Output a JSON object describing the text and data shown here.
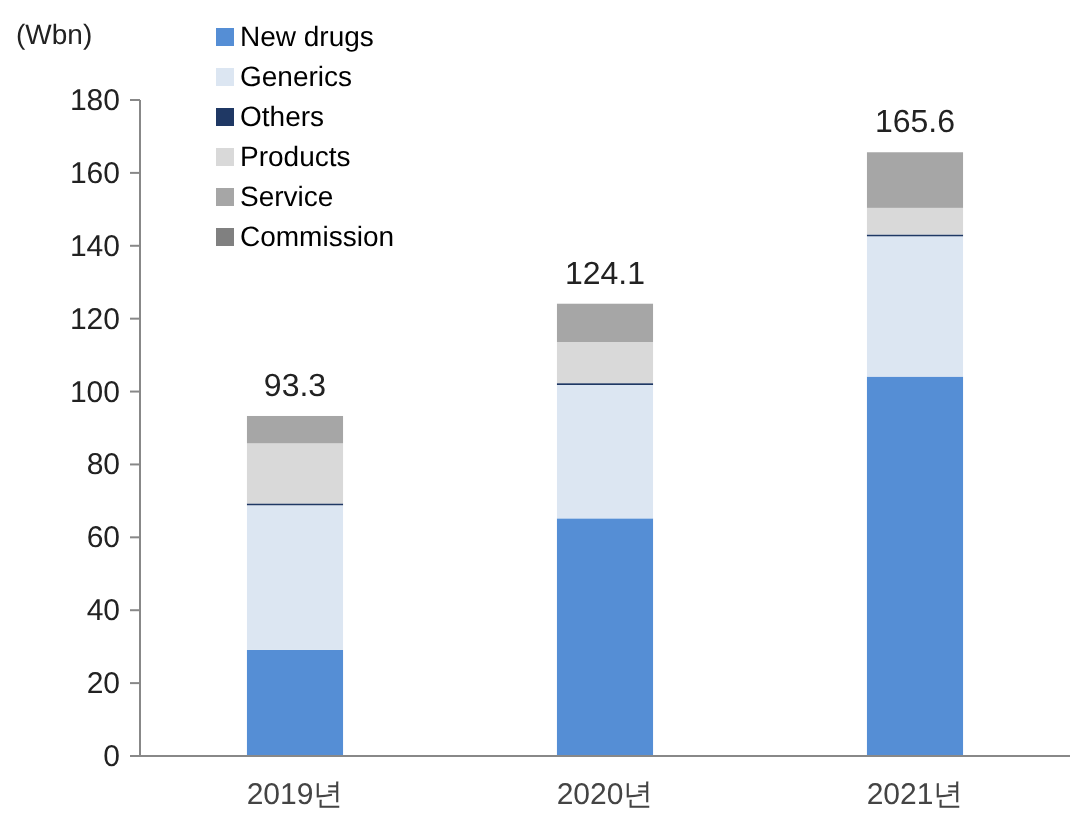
{
  "chart_data": {
    "type": "bar",
    "stacked": true,
    "ylabel": "(Wbn)",
    "categories": [
      "2019년",
      "2020년",
      "2021년"
    ],
    "series": [
      {
        "name": "New drugs",
        "color": "#558ed5",
        "values": [
          29.1,
          65.2,
          104.1
        ]
      },
      {
        "name": "Generics",
        "color": "#dce6f2",
        "values": [
          39.7,
          36.6,
          38.5
        ]
      },
      {
        "name": "Others",
        "color": "#1f3864",
        "values": [
          0.5,
          0.5,
          0.5
        ]
      },
      {
        "name": "Products",
        "color": "#d9d9d9",
        "values": [
          16.5,
          11.3,
          7.3
        ]
      },
      {
        "name": "Service",
        "color": "#a6a6a6",
        "values": [
          7.5,
          10.5,
          14.9
        ]
      },
      {
        "name": "Commission",
        "color": "#808080",
        "values": [
          0,
          0,
          0.3
        ]
      }
    ],
    "totals": [
      "93.3",
      "124.1",
      "165.6"
    ],
    "ylim": [
      0,
      180
    ],
    "yticks": [
      0,
      20,
      40,
      60,
      80,
      100,
      120,
      140,
      160,
      180
    ],
    "grid": false,
    "legend": "top left"
  }
}
